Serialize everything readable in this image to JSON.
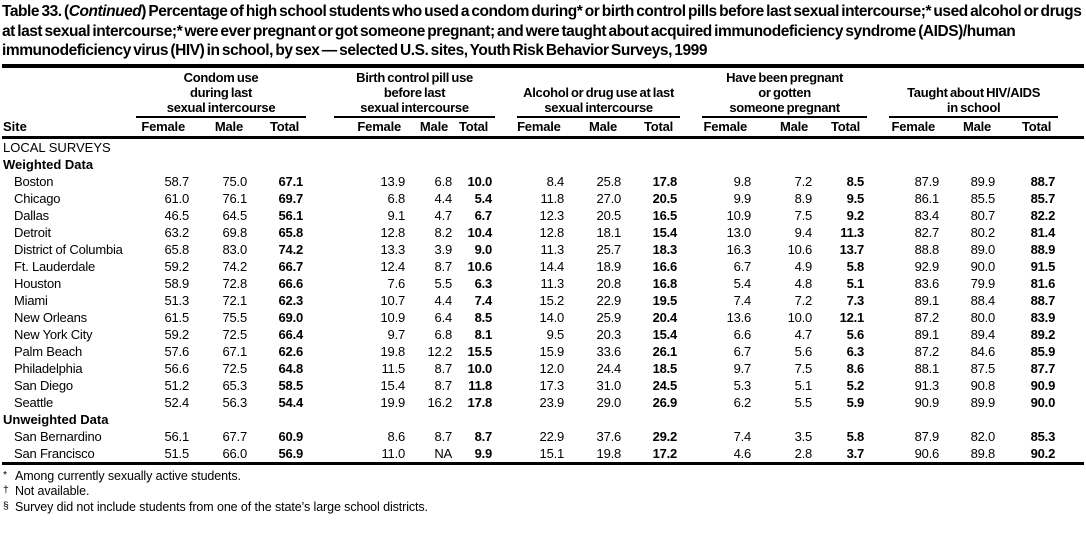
{
  "title": {
    "prefix": "Table 33. (",
    "continued": "Continued",
    "suffix": ") Percentage of high school students who used a condom during* or birth control pills before last sexual intercourse;* used alcohol or drugs at last sexual intercourse;* were ever pregnant or got someone pregnant; and were taught about acquired immunodeficiency syndrome (AIDS)/human immunodeficiency virus (HIV) in school, by sex — selected U.S. sites, Youth Risk Behavior Surveys, 1999"
  },
  "table": {
    "site_header": "Site",
    "sub_headers": [
      "Female",
      "Male",
      "Total"
    ],
    "groups": [
      {
        "title_lines": [
          "Condom use",
          "during last",
          "sexual intercourse"
        ]
      },
      {
        "title_lines": [
          "Birth control pill use",
          "before last",
          "sexual intercourse"
        ]
      },
      {
        "title_lines": [
          "Alcohol or drug use at last",
          "sexual intercourse"
        ]
      },
      {
        "title_lines": [
          "Have been pregnant",
          "or gotten",
          "someone pregnant"
        ]
      },
      {
        "title_lines": [
          "Taught about HIV/AIDS",
          "in school"
        ]
      }
    ],
    "rows": [
      {
        "kind": "section",
        "label": "LOCAL SURVEYS"
      },
      {
        "kind": "subsection",
        "label": "Weighted Data"
      },
      {
        "kind": "data",
        "site": "Boston",
        "values": [
          "58.7",
          "75.0",
          "67.1",
          "13.9",
          "6.8",
          "10.0",
          "8.4",
          "25.8",
          "17.8",
          "9.8",
          "7.2",
          "8.5",
          "87.9",
          "89.9",
          "88.7"
        ]
      },
      {
        "kind": "data",
        "site": "Chicago",
        "values": [
          "61.0",
          "76.1",
          "69.7",
          "6.8",
          "4.4",
          "5.4",
          "11.8",
          "27.0",
          "20.5",
          "9.9",
          "8.9",
          "9.5",
          "86.1",
          "85.5",
          "85.7"
        ]
      },
      {
        "kind": "data",
        "site": "Dallas",
        "values": [
          "46.5",
          "64.5",
          "56.1",
          "9.1",
          "4.7",
          "6.7",
          "12.3",
          "20.5",
          "16.5",
          "10.9",
          "7.5",
          "9.2",
          "83.4",
          "80.7",
          "82.2"
        ]
      },
      {
        "kind": "data",
        "site": "Detroit",
        "values": [
          "63.2",
          "69.8",
          "65.8",
          "12.8",
          "8.2",
          "10.4",
          "12.8",
          "18.1",
          "15.4",
          "13.0",
          "9.4",
          "11.3",
          "82.7",
          "80.2",
          "81.4"
        ]
      },
      {
        "kind": "data",
        "site": "District of Columbia",
        "values": [
          "65.8",
          "83.0",
          "74.2",
          "13.3",
          "3.9",
          "9.0",
          "11.3",
          "25.7",
          "18.3",
          "16.3",
          "10.6",
          "13.7",
          "88.8",
          "89.0",
          "88.9"
        ]
      },
      {
        "kind": "data",
        "site": "Ft. Lauderdale",
        "values": [
          "59.2",
          "74.2",
          "66.7",
          "12.4",
          "8.7",
          "10.6",
          "14.4",
          "18.9",
          "16.6",
          "6.7",
          "4.9",
          "5.8",
          "92.9",
          "90.0",
          "91.5"
        ]
      },
      {
        "kind": "data",
        "site": "Houston",
        "values": [
          "58.9",
          "72.8",
          "66.6",
          "7.6",
          "5.5",
          "6.3",
          "11.3",
          "20.8",
          "16.8",
          "5.4",
          "4.8",
          "5.1",
          "83.6",
          "79.9",
          "81.6"
        ]
      },
      {
        "kind": "data",
        "site": "Miami",
        "values": [
          "51.3",
          "72.1",
          "62.3",
          "10.7",
          "4.4",
          "7.4",
          "15.2",
          "22.9",
          "19.5",
          "7.4",
          "7.2",
          "7.3",
          "89.1",
          "88.4",
          "88.7"
        ]
      },
      {
        "kind": "data",
        "site": "New Orleans",
        "values": [
          "61.5",
          "75.5",
          "69.0",
          "10.9",
          "6.4",
          "8.5",
          "14.0",
          "25.9",
          "20.4",
          "13.6",
          "10.0",
          "12.1",
          "87.2",
          "80.0",
          "83.9"
        ]
      },
      {
        "kind": "data",
        "site": "New York City",
        "values": [
          "59.2",
          "72.5",
          "66.4",
          "9.7",
          "6.8",
          "8.1",
          "9.5",
          "20.3",
          "15.4",
          "6.6",
          "4.7",
          "5.6",
          "89.1",
          "89.4",
          "89.2"
        ]
      },
      {
        "kind": "data",
        "site": "Palm Beach",
        "values": [
          "57.6",
          "67.1",
          "62.6",
          "19.8",
          "12.2",
          "15.5",
          "15.9",
          "33.6",
          "26.1",
          "6.7",
          "5.6",
          "6.3",
          "87.2",
          "84.6",
          "85.9"
        ]
      },
      {
        "kind": "data",
        "site": "Philadelphia",
        "values": [
          "56.6",
          "72.5",
          "64.8",
          "11.5",
          "8.7",
          "10.0",
          "12.0",
          "24.4",
          "18.5",
          "9.7",
          "7.5",
          "8.6",
          "88.1",
          "87.5",
          "87.7"
        ]
      },
      {
        "kind": "data",
        "site": "San Diego",
        "values": [
          "51.2",
          "65.3",
          "58.5",
          "15.4",
          "8.7",
          "11.8",
          "17.3",
          "31.0",
          "24.5",
          "5.3",
          "5.1",
          "5.2",
          "91.3",
          "90.8",
          "90.9"
        ]
      },
      {
        "kind": "data",
        "site": "Seattle",
        "values": [
          "52.4",
          "56.3",
          "54.4",
          "19.9",
          "16.2",
          "17.8",
          "23.9",
          "29.0",
          "26.9",
          "6.2",
          "5.5",
          "5.9",
          "90.9",
          "89.9",
          "90.0"
        ]
      },
      {
        "kind": "subsection",
        "label": "Unweighted Data"
      },
      {
        "kind": "data",
        "site": "San Bernardino",
        "values": [
          "56.1",
          "67.7",
          "60.9",
          "8.6",
          "8.7",
          "8.7",
          "22.9",
          "37.6",
          "29.2",
          "7.4",
          "3.5",
          "5.8",
          "87.9",
          "82.0",
          "85.3"
        ]
      },
      {
        "kind": "data",
        "site": "San Francisco",
        "values": [
          "51.5",
          "66.0",
          "56.9",
          "11.0",
          "NA",
          "9.9",
          "15.1",
          "19.8",
          "17.2",
          "4.6",
          "2.8",
          "3.7",
          "90.6",
          "89.8",
          "90.2"
        ]
      }
    ]
  },
  "footnotes": [
    {
      "marker": "*",
      "text": "Among currently sexually active students."
    },
    {
      "marker": "†",
      "text": "Not available."
    },
    {
      "marker": "§",
      "text": "Survey did not include students from one of the state’s large school districts."
    }
  ]
}
